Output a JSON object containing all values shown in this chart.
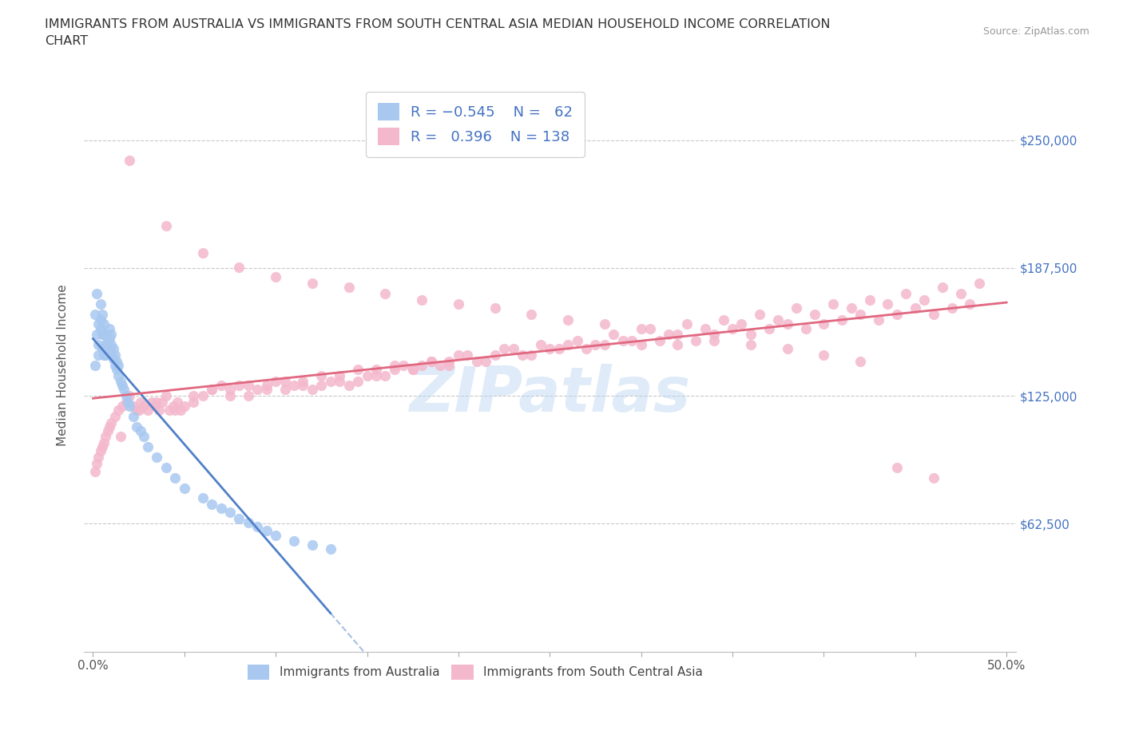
{
  "title": "IMMIGRANTS FROM AUSTRALIA VS IMMIGRANTS FROM SOUTH CENTRAL ASIA MEDIAN HOUSEHOLD INCOME CORRELATION\nCHART",
  "source": "Source: ZipAtlas.com",
  "ylabel": "Median Household Income",
  "xlim": [
    -0.005,
    0.505
  ],
  "ylim": [
    0,
    280000
  ],
  "yticks": [
    62500,
    125000,
    187500,
    250000
  ],
  "ytick_labels": [
    "$62,500",
    "$125,000",
    "$187,500",
    "$250,000"
  ],
  "xticks": [
    0.0,
    0.05,
    0.1,
    0.15,
    0.2,
    0.25,
    0.3,
    0.35,
    0.4,
    0.45,
    0.5
  ],
  "xtick_labels_sparse": [
    "0.0%",
    "",
    "",
    "",
    "",
    "",
    "",
    "",
    "",
    "",
    "50.0%"
  ],
  "color_blue": "#a8c8f0",
  "color_pink": "#f4b8cc",
  "line_blue": "#5080c8",
  "line_pink": "#e06880",
  "australia_x": [
    0.001,
    0.001,
    0.002,
    0.002,
    0.003,
    0.003,
    0.003,
    0.004,
    0.004,
    0.004,
    0.005,
    0.005,
    0.005,
    0.006,
    0.006,
    0.006,
    0.007,
    0.007,
    0.007,
    0.008,
    0.008,
    0.009,
    0.009,
    0.009,
    0.01,
    0.01,
    0.01,
    0.011,
    0.011,
    0.012,
    0.012,
    0.013,
    0.013,
    0.014,
    0.014,
    0.015,
    0.016,
    0.017,
    0.018,
    0.019,
    0.02,
    0.022,
    0.024,
    0.026,
    0.028,
    0.03,
    0.035,
    0.04,
    0.045,
    0.05,
    0.06,
    0.065,
    0.07,
    0.075,
    0.08,
    0.085,
    0.09,
    0.095,
    0.1,
    0.11,
    0.12,
    0.13
  ],
  "australia_y": [
    140000,
    165000,
    155000,
    175000,
    150000,
    160000,
    145000,
    158000,
    162000,
    170000,
    148000,
    155000,
    165000,
    145000,
    155000,
    160000,
    145000,
    150000,
    155000,
    148000,
    152000,
    148000,
    153000,
    158000,
    145000,
    150000,
    155000,
    143000,
    148000,
    140000,
    145000,
    138000,
    142000,
    135000,
    140000,
    132000,
    130000,
    128000,
    125000,
    122000,
    120000,
    115000,
    110000,
    108000,
    105000,
    100000,
    95000,
    90000,
    85000,
    80000,
    75000,
    72000,
    70000,
    68000,
    65000,
    63000,
    61000,
    59000,
    57000,
    54000,
    52000,
    50000
  ],
  "sca_x": [
    0.001,
    0.002,
    0.003,
    0.004,
    0.005,
    0.006,
    0.007,
    0.008,
    0.009,
    0.01,
    0.012,
    0.014,
    0.016,
    0.018,
    0.02,
    0.022,
    0.024,
    0.026,
    0.028,
    0.03,
    0.032,
    0.034,
    0.036,
    0.038,
    0.04,
    0.042,
    0.044,
    0.046,
    0.048,
    0.05,
    0.055,
    0.06,
    0.065,
    0.07,
    0.075,
    0.08,
    0.085,
    0.09,
    0.095,
    0.1,
    0.105,
    0.11,
    0.115,
    0.12,
    0.125,
    0.13,
    0.135,
    0.14,
    0.145,
    0.15,
    0.155,
    0.16,
    0.165,
    0.17,
    0.175,
    0.18,
    0.185,
    0.19,
    0.195,
    0.2,
    0.21,
    0.22,
    0.23,
    0.24,
    0.25,
    0.26,
    0.27,
    0.28,
    0.29,
    0.3,
    0.31,
    0.32,
    0.33,
    0.34,
    0.35,
    0.36,
    0.37,
    0.38,
    0.39,
    0.4,
    0.41,
    0.42,
    0.43,
    0.44,
    0.45,
    0.46,
    0.47,
    0.48,
    0.015,
    0.025,
    0.035,
    0.045,
    0.055,
    0.065,
    0.075,
    0.085,
    0.095,
    0.105,
    0.115,
    0.125,
    0.135,
    0.145,
    0.155,
    0.165,
    0.175,
    0.185,
    0.195,
    0.205,
    0.215,
    0.225,
    0.235,
    0.245,
    0.255,
    0.265,
    0.275,
    0.285,
    0.295,
    0.305,
    0.315,
    0.325,
    0.335,
    0.345,
    0.355,
    0.365,
    0.375,
    0.385,
    0.395,
    0.405,
    0.415,
    0.425,
    0.435,
    0.445,
    0.455,
    0.465,
    0.475,
    0.485,
    0.02,
    0.04,
    0.06,
    0.08,
    0.1,
    0.12,
    0.14,
    0.16,
    0.18,
    0.2,
    0.22,
    0.24,
    0.26,
    0.28,
    0.3,
    0.32,
    0.34,
    0.36,
    0.38,
    0.4,
    0.42,
    0.44,
    0.46
  ],
  "sca_y": [
    88000,
    92000,
    95000,
    98000,
    100000,
    102000,
    105000,
    108000,
    110000,
    112000,
    115000,
    118000,
    120000,
    122000,
    125000,
    120000,
    118000,
    122000,
    120000,
    118000,
    122000,
    120000,
    118000,
    122000,
    125000,
    118000,
    120000,
    122000,
    118000,
    120000,
    122000,
    125000,
    128000,
    130000,
    128000,
    130000,
    125000,
    128000,
    130000,
    132000,
    128000,
    130000,
    132000,
    128000,
    130000,
    132000,
    135000,
    130000,
    132000,
    135000,
    138000,
    135000,
    138000,
    140000,
    138000,
    140000,
    142000,
    140000,
    142000,
    145000,
    142000,
    145000,
    148000,
    145000,
    148000,
    150000,
    148000,
    150000,
    152000,
    150000,
    152000,
    150000,
    152000,
    155000,
    158000,
    155000,
    158000,
    160000,
    158000,
    160000,
    162000,
    165000,
    162000,
    165000,
    168000,
    165000,
    168000,
    170000,
    105000,
    118000,
    122000,
    118000,
    125000,
    128000,
    125000,
    130000,
    128000,
    132000,
    130000,
    135000,
    132000,
    138000,
    135000,
    140000,
    138000,
    142000,
    140000,
    145000,
    142000,
    148000,
    145000,
    150000,
    148000,
    152000,
    150000,
    155000,
    152000,
    158000,
    155000,
    160000,
    158000,
    162000,
    160000,
    165000,
    162000,
    168000,
    165000,
    170000,
    168000,
    172000,
    170000,
    175000,
    172000,
    178000,
    175000,
    180000,
    240000,
    208000,
    195000,
    188000,
    183000,
    180000,
    178000,
    175000,
    172000,
    170000,
    168000,
    165000,
    162000,
    160000,
    158000,
    155000,
    152000,
    150000,
    148000,
    145000,
    142000,
    90000,
    85000
  ]
}
